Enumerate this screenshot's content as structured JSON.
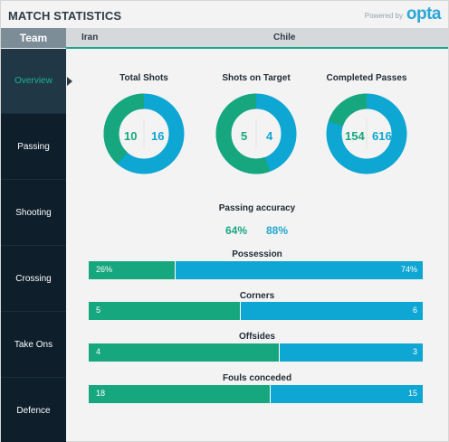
{
  "header": {
    "title": "MATCH STATISTICS",
    "powered_by": "Powered by",
    "brand": "opta"
  },
  "teams": {
    "tab_label": "Team",
    "home": "Iran",
    "away": "Chile"
  },
  "colors": {
    "home": "#17a77e",
    "away": "#0ea6d2",
    "sidebar": "#0e1e2b",
    "accent": "#1bb38f"
  },
  "sidebar": {
    "items": [
      {
        "label": "Overview",
        "active": true
      },
      {
        "label": "Passing"
      },
      {
        "label": "Shooting"
      },
      {
        "label": "Crossing"
      },
      {
        "label": "Take Ons"
      },
      {
        "label": "Defence"
      }
    ]
  },
  "donuts": [
    {
      "label": "Total Shots",
      "home": 10,
      "away": 16
    },
    {
      "label": "Shots on Target",
      "home": 5,
      "away": 4
    },
    {
      "label": "Completed Passes",
      "home": 154,
      "away": 616
    }
  ],
  "passing_accuracy": {
    "label": "Passing accuracy",
    "home": "64%",
    "away": "88%"
  },
  "bars": [
    {
      "label": "Possession",
      "home": "26%",
      "away": "74%",
      "home_value": 26,
      "away_value": 74
    },
    {
      "label": "Corners",
      "home": "5",
      "away": "6",
      "home_value": 5,
      "away_value": 6
    },
    {
      "label": "Offsides",
      "home": "4",
      "away": "3",
      "home_value": 4,
      "away_value": 3
    },
    {
      "label": "Fouls conceded",
      "home": "18",
      "away": "15",
      "home_value": 18,
      "away_value": 15
    }
  ]
}
